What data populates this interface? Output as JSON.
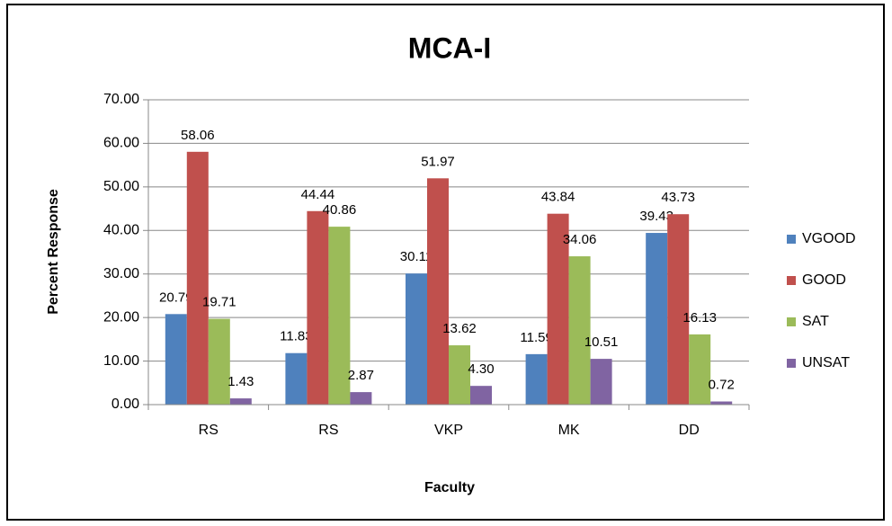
{
  "chart_data": {
    "type": "bar",
    "title": "MCA-I",
    "x_label": "Faculty",
    "y_label": "Percent Response",
    "categories": [
      "RS",
      "RS",
      "VKP",
      "MK",
      "DD"
    ],
    "series": [
      {
        "name": "VGOOD",
        "color": "#4f81bd",
        "values": [
          20.79,
          11.83,
          30.11,
          11.59,
          39.43
        ],
        "value_labels": [
          "20.79",
          "11.83",
          "30.11",
          "11.59",
          "39.43"
        ]
      },
      {
        "name": "GOOD",
        "color": "#c0504d",
        "values": [
          58.06,
          44.44,
          51.97,
          43.84,
          43.73
        ],
        "value_labels": [
          "58.06",
          "44.44",
          "51.97",
          "43.84",
          "43.73"
        ]
      },
      {
        "name": "SAT",
        "color": "#9bbb59",
        "values": [
          19.71,
          40.86,
          13.62,
          34.06,
          16.13
        ],
        "value_labels": [
          "19.71",
          "40.86",
          "13.62",
          "34.06",
          "16.13"
        ]
      },
      {
        "name": "UNSAT",
        "color": "#8064a2",
        "values": [
          1.43,
          2.87,
          4.3,
          10.51,
          0.72
        ],
        "value_labels": [
          "1.43",
          "2.87",
          "4.30",
          "10.51",
          "0.72"
        ]
      }
    ],
    "ylim": [
      0,
      70
    ],
    "yticks": [
      {
        "value": 0,
        "label": "0.00"
      },
      {
        "value": 10,
        "label": "10.00"
      },
      {
        "value": 20,
        "label": "20.00"
      },
      {
        "value": 30,
        "label": "30.00"
      },
      {
        "value": 40,
        "label": "40.00"
      },
      {
        "value": 50,
        "label": "50.00"
      },
      {
        "value": 60,
        "label": "60.00"
      },
      {
        "value": 70,
        "label": "70.00"
      }
    ],
    "grid": true,
    "legend": "right"
  }
}
